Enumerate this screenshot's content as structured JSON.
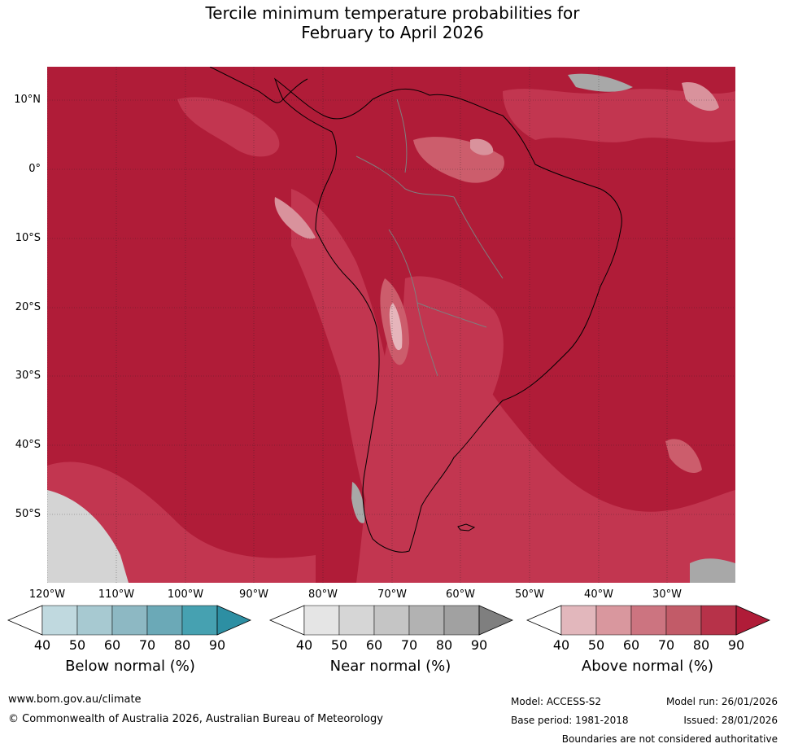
{
  "title_line1": "Tercile minimum temperature probabilities for",
  "title_line2": "February to April 2026",
  "map": {
    "lat_labels": [
      "10°N",
      "0°",
      "10°S",
      "20°S",
      "30°S",
      "40°S",
      "50°S"
    ],
    "lon_labels": [
      "120°W",
      "110°W",
      "100°W",
      "90°W",
      "80°W",
      "70°W",
      "60°W",
      "50°W",
      "40°W",
      "30°W"
    ],
    "colors": {
      "above_90": "#b01c38",
      "above_80": "#c23650",
      "above_70": "#cc5d6c",
      "above_60": "#d9929c",
      "above_50": "#e6b5bb",
      "near_50": "#d4d4d4",
      "near_70": "#a8a8a8",
      "land_border": "#000000",
      "country_border": "#7f7f7f",
      "grid": "#222222"
    }
  },
  "colorbars": [
    {
      "title": "Below normal (%)",
      "ticks": [
        "40",
        "50",
        "60",
        "70",
        "80",
        "90"
      ],
      "colors": [
        "#c0d9df",
        "#a7c9d1",
        "#8db8c3",
        "#6ba9b7",
        "#46a1b1",
        "#2d8fa3"
      ]
    },
    {
      "title": "Near normal (%)",
      "ticks": [
        "40",
        "50",
        "60",
        "70",
        "80",
        "90"
      ],
      "colors": [
        "#e5e5e5",
        "#d6d6d6",
        "#c5c5c5",
        "#b2b2b2",
        "#a1a1a1",
        "#7f7f7f"
      ]
    },
    {
      "title": "Above normal (%)",
      "ticks": [
        "40",
        "50",
        "60",
        "70",
        "80",
        "90"
      ],
      "colors": [
        "#e2b7bc",
        "#d9979e",
        "#cc7480",
        "#c25b68",
        "#b73249",
        "#b01c38"
      ]
    }
  ],
  "footer": {
    "website": "www.bom.gov.au/climate",
    "copyright": "© Commonwealth of Australia 2026, Australian Bureau of Meteorology",
    "model": "Model: ACCESS-S2",
    "model_run": "Model run: 26/01/2026",
    "base_period": "Base period: 1981-2018",
    "issued": "Issued: 28/01/2026",
    "disclaimer": "Boundaries are not considered authoritative"
  }
}
